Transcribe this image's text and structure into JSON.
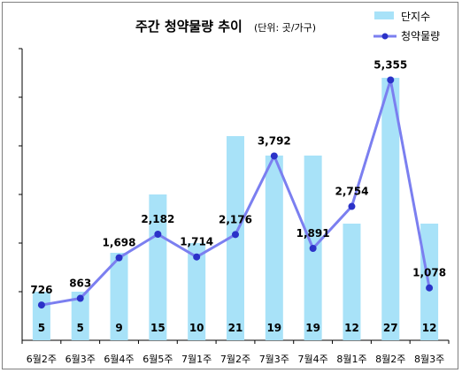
{
  "chart_data": {
    "type": "bar+line",
    "title": "주간 청약물량 추이",
    "unit_note": "(단위: 곳/가구)",
    "categories": [
      "6월2주",
      "6월3주",
      "6월4주",
      "6월5주",
      "7월1주",
      "7월2주",
      "7월3주",
      "7월4주",
      "8월1주",
      "8월2주",
      "8월3주"
    ],
    "series": [
      {
        "name": "단지수",
        "type": "bar",
        "axis": "left",
        "values": [
          5,
          5,
          9,
          15,
          10,
          21,
          19,
          19,
          12,
          27,
          12
        ],
        "labels": [
          "5",
          "5",
          "9",
          "15",
          "10",
          "21",
          "19",
          "19",
          "12",
          "27",
          "12"
        ]
      },
      {
        "name": "청약물량",
        "type": "line",
        "axis": "right",
        "values": [
          726,
          863,
          1698,
          2182,
          1714,
          2176,
          3792,
          1891,
          2754,
          5355,
          1078
        ],
        "labels": [
          "726",
          "863",
          "1,698",
          "2,182",
          "1,714",
          "2,176",
          "3,792",
          "1,891",
          "2,754",
          "5,355",
          "1,078"
        ]
      }
    ],
    "bar_axis_range": [
      0,
      30
    ],
    "line_axis_range": [
      0,
      6000
    ],
    "gridlines": "left-axis ticks only",
    "legend_position": "top-right",
    "colors": {
      "bar": "#a8e2f8",
      "line": "#7b7ff0",
      "marker": "#2b32c8"
    }
  }
}
